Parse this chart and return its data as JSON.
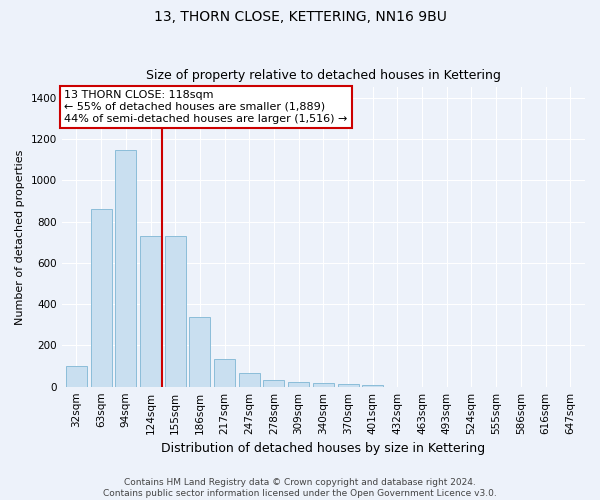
{
  "title": "13, THORN CLOSE, KETTERING, NN16 9BU",
  "subtitle": "Size of property relative to detached houses in Kettering",
  "xlabel": "Distribution of detached houses by size in Kettering",
  "ylabel": "Number of detached properties",
  "categories": [
    "32sqm",
    "63sqm",
    "94sqm",
    "124sqm",
    "155sqm",
    "186sqm",
    "217sqm",
    "247sqm",
    "278sqm",
    "309sqm",
    "340sqm",
    "370sqm",
    "401sqm",
    "432sqm",
    "463sqm",
    "493sqm",
    "524sqm",
    "555sqm",
    "586sqm",
    "616sqm",
    "647sqm"
  ],
  "values": [
    100,
    860,
    1145,
    728,
    728,
    338,
    135,
    68,
    30,
    25,
    18,
    15,
    10,
    0,
    0,
    0,
    0,
    0,
    0,
    0,
    0
  ],
  "bar_color": "#c9dff0",
  "bar_edge_color": "#8bbdd9",
  "vline_x_index": 3.45,
  "annotation_line1": "13 THORN CLOSE: 118sqm",
  "annotation_line2": "← 55% of detached houses are smaller (1,889)",
  "annotation_line3": "44% of semi-detached houses are larger (1,516) →",
  "annotation_box_facecolor": "#ffffff",
  "annotation_box_edgecolor": "#cc0000",
  "vline_color": "#cc0000",
  "ylim": [
    0,
    1450
  ],
  "yticks": [
    0,
    200,
    400,
    600,
    800,
    1000,
    1200,
    1400
  ],
  "footer_line1": "Contains HM Land Registry data © Crown copyright and database right 2024.",
  "footer_line2": "Contains public sector information licensed under the Open Government Licence v3.0.",
  "bg_color": "#edf2fa",
  "grid_color": "#ffffff",
  "title_fontsize": 10,
  "subtitle_fontsize": 9,
  "xlabel_fontsize": 9,
  "ylabel_fontsize": 8,
  "tick_fontsize": 7.5,
  "annotation_fontsize": 8,
  "footer_fontsize": 6.5
}
